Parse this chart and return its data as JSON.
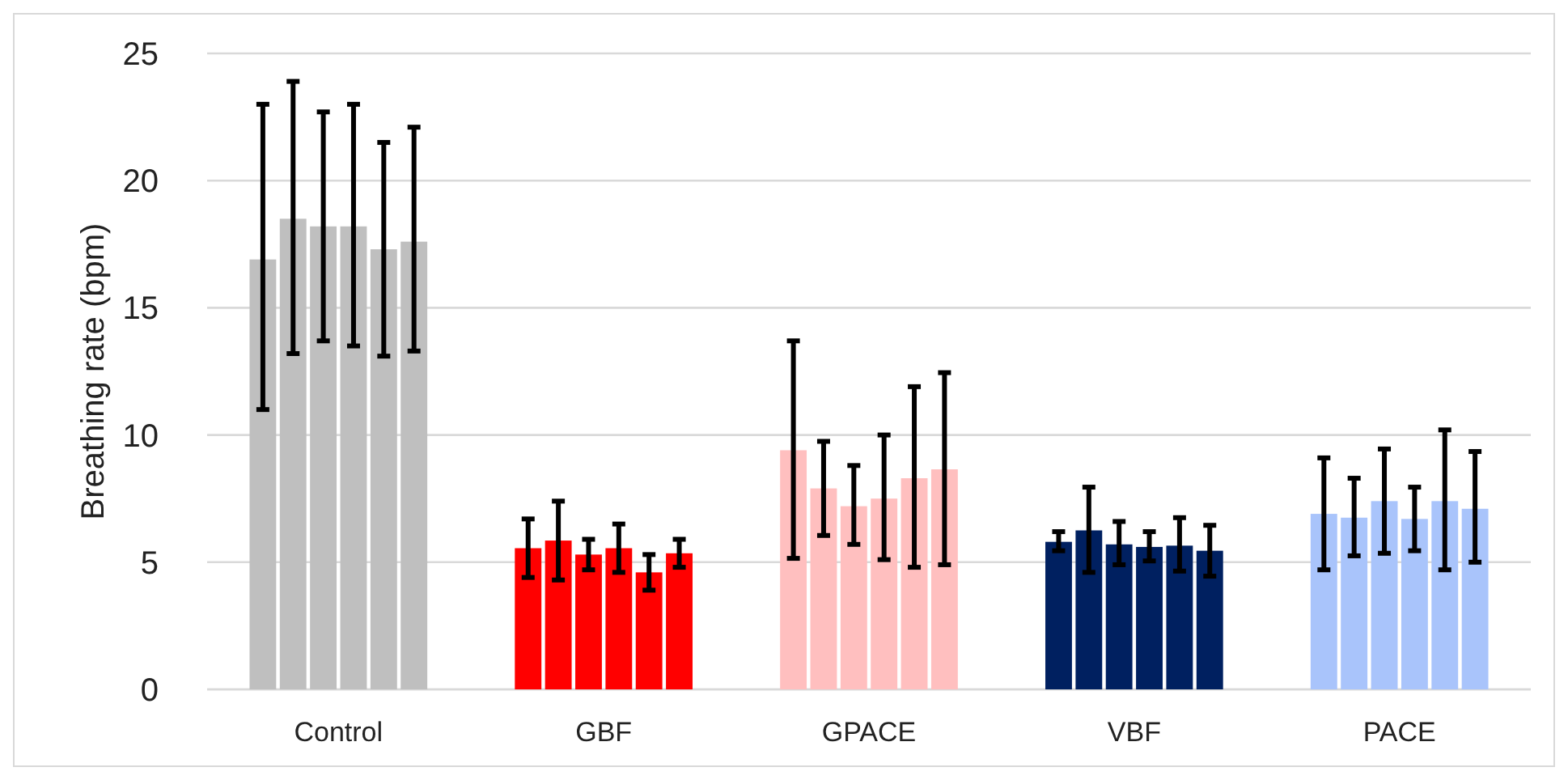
{
  "chart_data": {
    "type": "bar",
    "ylabel": "Breathing rate (bpm)",
    "categories": [
      "Control",
      "GBF",
      "GPACE",
      "VBF",
      "PACE"
    ],
    "ylim": [
      0,
      25
    ],
    "yticks": [
      0,
      5,
      10,
      15,
      20,
      25
    ],
    "grid": "y",
    "series": [
      {
        "colors": [
          "#bfbfbf",
          "#ff0000",
          "#ffbfbf",
          "#002060",
          "#a9c4fb"
        ],
        "values": [
          16.9,
          5.55,
          9.4,
          5.8,
          6.9
        ],
        "errors": [
          [
            11,
            23
          ],
          [
            4.4,
            6.7
          ],
          [
            5.15,
            13.7
          ],
          [
            5.45,
            6.2
          ],
          [
            4.7,
            9.1
          ]
        ]
      },
      {
        "colors": [
          "#bfbfbf",
          "#ff0000",
          "#ffbfbf",
          "#002060",
          "#a9c4fb"
        ],
        "values": [
          18.5,
          5.85,
          7.9,
          6.25,
          6.75
        ],
        "errors": [
          [
            13.2,
            23.9
          ],
          [
            4.3,
            7.4
          ],
          [
            6.05,
            9.75
          ],
          [
            4.6,
            7.95
          ],
          [
            5.25,
            8.3
          ]
        ]
      },
      {
        "colors": [
          "#bfbfbf",
          "#ff0000",
          "#ffbfbf",
          "#002060",
          "#a9c4fb"
        ],
        "values": [
          18.2,
          5.3,
          7.2,
          5.7,
          7.4
        ],
        "errors": [
          [
            13.7,
            22.7
          ],
          [
            4.7,
            5.9
          ],
          [
            5.7,
            8.8
          ],
          [
            4.9,
            6.6
          ],
          [
            5.35,
            9.45
          ]
        ]
      },
      {
        "colors": [
          "#bfbfbf",
          "#ff0000",
          "#ffbfbf",
          "#002060",
          "#a9c4fb"
        ],
        "values": [
          18.2,
          5.55,
          7.5,
          5.6,
          6.7
        ],
        "errors": [
          [
            13.5,
            23
          ],
          [
            4.6,
            6.5
          ],
          [
            5.1,
            10
          ],
          [
            5.05,
            6.2
          ],
          [
            5.45,
            7.95
          ]
        ]
      },
      {
        "colors": [
          "#bfbfbf",
          "#ff0000",
          "#ffbfbf",
          "#002060",
          "#a9c4fb"
        ],
        "values": [
          17.3,
          4.6,
          8.3,
          5.65,
          7.4
        ],
        "errors": [
          [
            13.1,
            21.5
          ],
          [
            3.9,
            5.3
          ],
          [
            4.8,
            11.9
          ],
          [
            4.65,
            6.75
          ],
          [
            4.7,
            10.2
          ]
        ]
      },
      {
        "colors": [
          "#bfbfbf",
          "#ff0000",
          "#ffbfbf",
          "#002060",
          "#a9c4fb"
        ],
        "values": [
          17.6,
          5.35,
          8.65,
          5.45,
          7.1
        ],
        "errors": [
          [
            13.3,
            22.1
          ],
          [
            4.8,
            5.9
          ],
          [
            4.9,
            12.45
          ],
          [
            4.45,
            6.45
          ],
          [
            5,
            9.35
          ]
        ]
      }
    ]
  }
}
